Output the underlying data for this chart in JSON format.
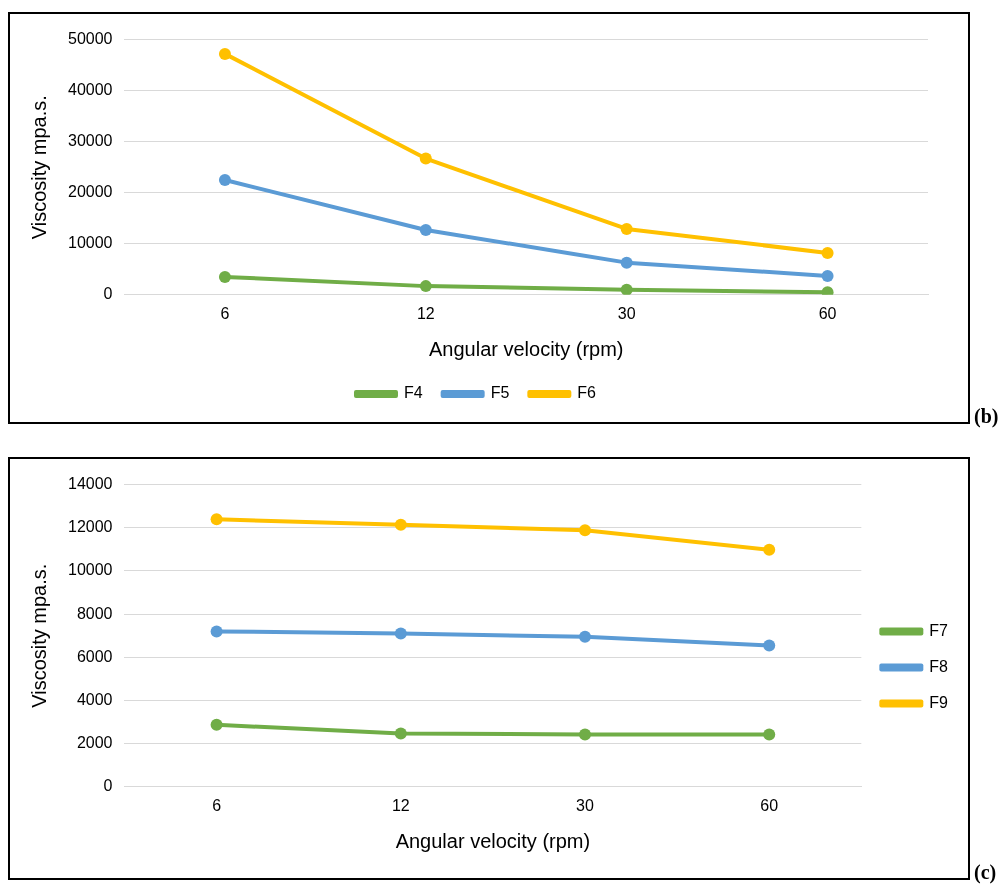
{
  "chart_data": [
    {
      "type": "line",
      "xlabel": "Angular velocity (rpm)",
      "ylabel": "Viscosity mpa.s.",
      "categories": [
        "6",
        "12",
        "30",
        "60"
      ],
      "series": [
        {
          "name": "F4",
          "color": "#70ad47",
          "values": [
            3500,
            1700,
            1000,
            500
          ]
        },
        {
          "name": "F5",
          "color": "#5b9bd5",
          "values": [
            22500,
            12700,
            6300,
            3700
          ]
        },
        {
          "name": "F6",
          "color": "#ffc000",
          "values": [
            47200,
            26700,
            12900,
            8200
          ]
        }
      ],
      "ylim": [
        0,
        50000
      ],
      "yticks": [
        0,
        10000,
        20000,
        30000,
        40000,
        50000
      ],
      "grid": "y",
      "legend": "bottom",
      "marker": "circle",
      "annotations": [
        "(b)"
      ]
    },
    {
      "type": "line",
      "xlabel": "Angular velocity (rpm)",
      "ylabel": "Viscosity mpa.s.",
      "categories": [
        "6",
        "12",
        "30",
        "60"
      ],
      "series": [
        {
          "name": "F7",
          "color": "#70ad47",
          "values": [
            2870,
            2470,
            2420,
            2420
          ]
        },
        {
          "name": "F8",
          "color": "#5b9bd5",
          "values": [
            7200,
            7100,
            6950,
            6550
          ]
        },
        {
          "name": "F9",
          "color": "#ffc000",
          "values": [
            12390,
            12140,
            11880,
            10980
          ]
        }
      ],
      "ylim": [
        0,
        14000
      ],
      "yticks": [
        0,
        2000,
        4000,
        6000,
        8000,
        10000,
        12000,
        14000
      ],
      "grid": "y",
      "legend": "right",
      "marker": "circle",
      "annotations": [
        "(c)"
      ]
    }
  ]
}
